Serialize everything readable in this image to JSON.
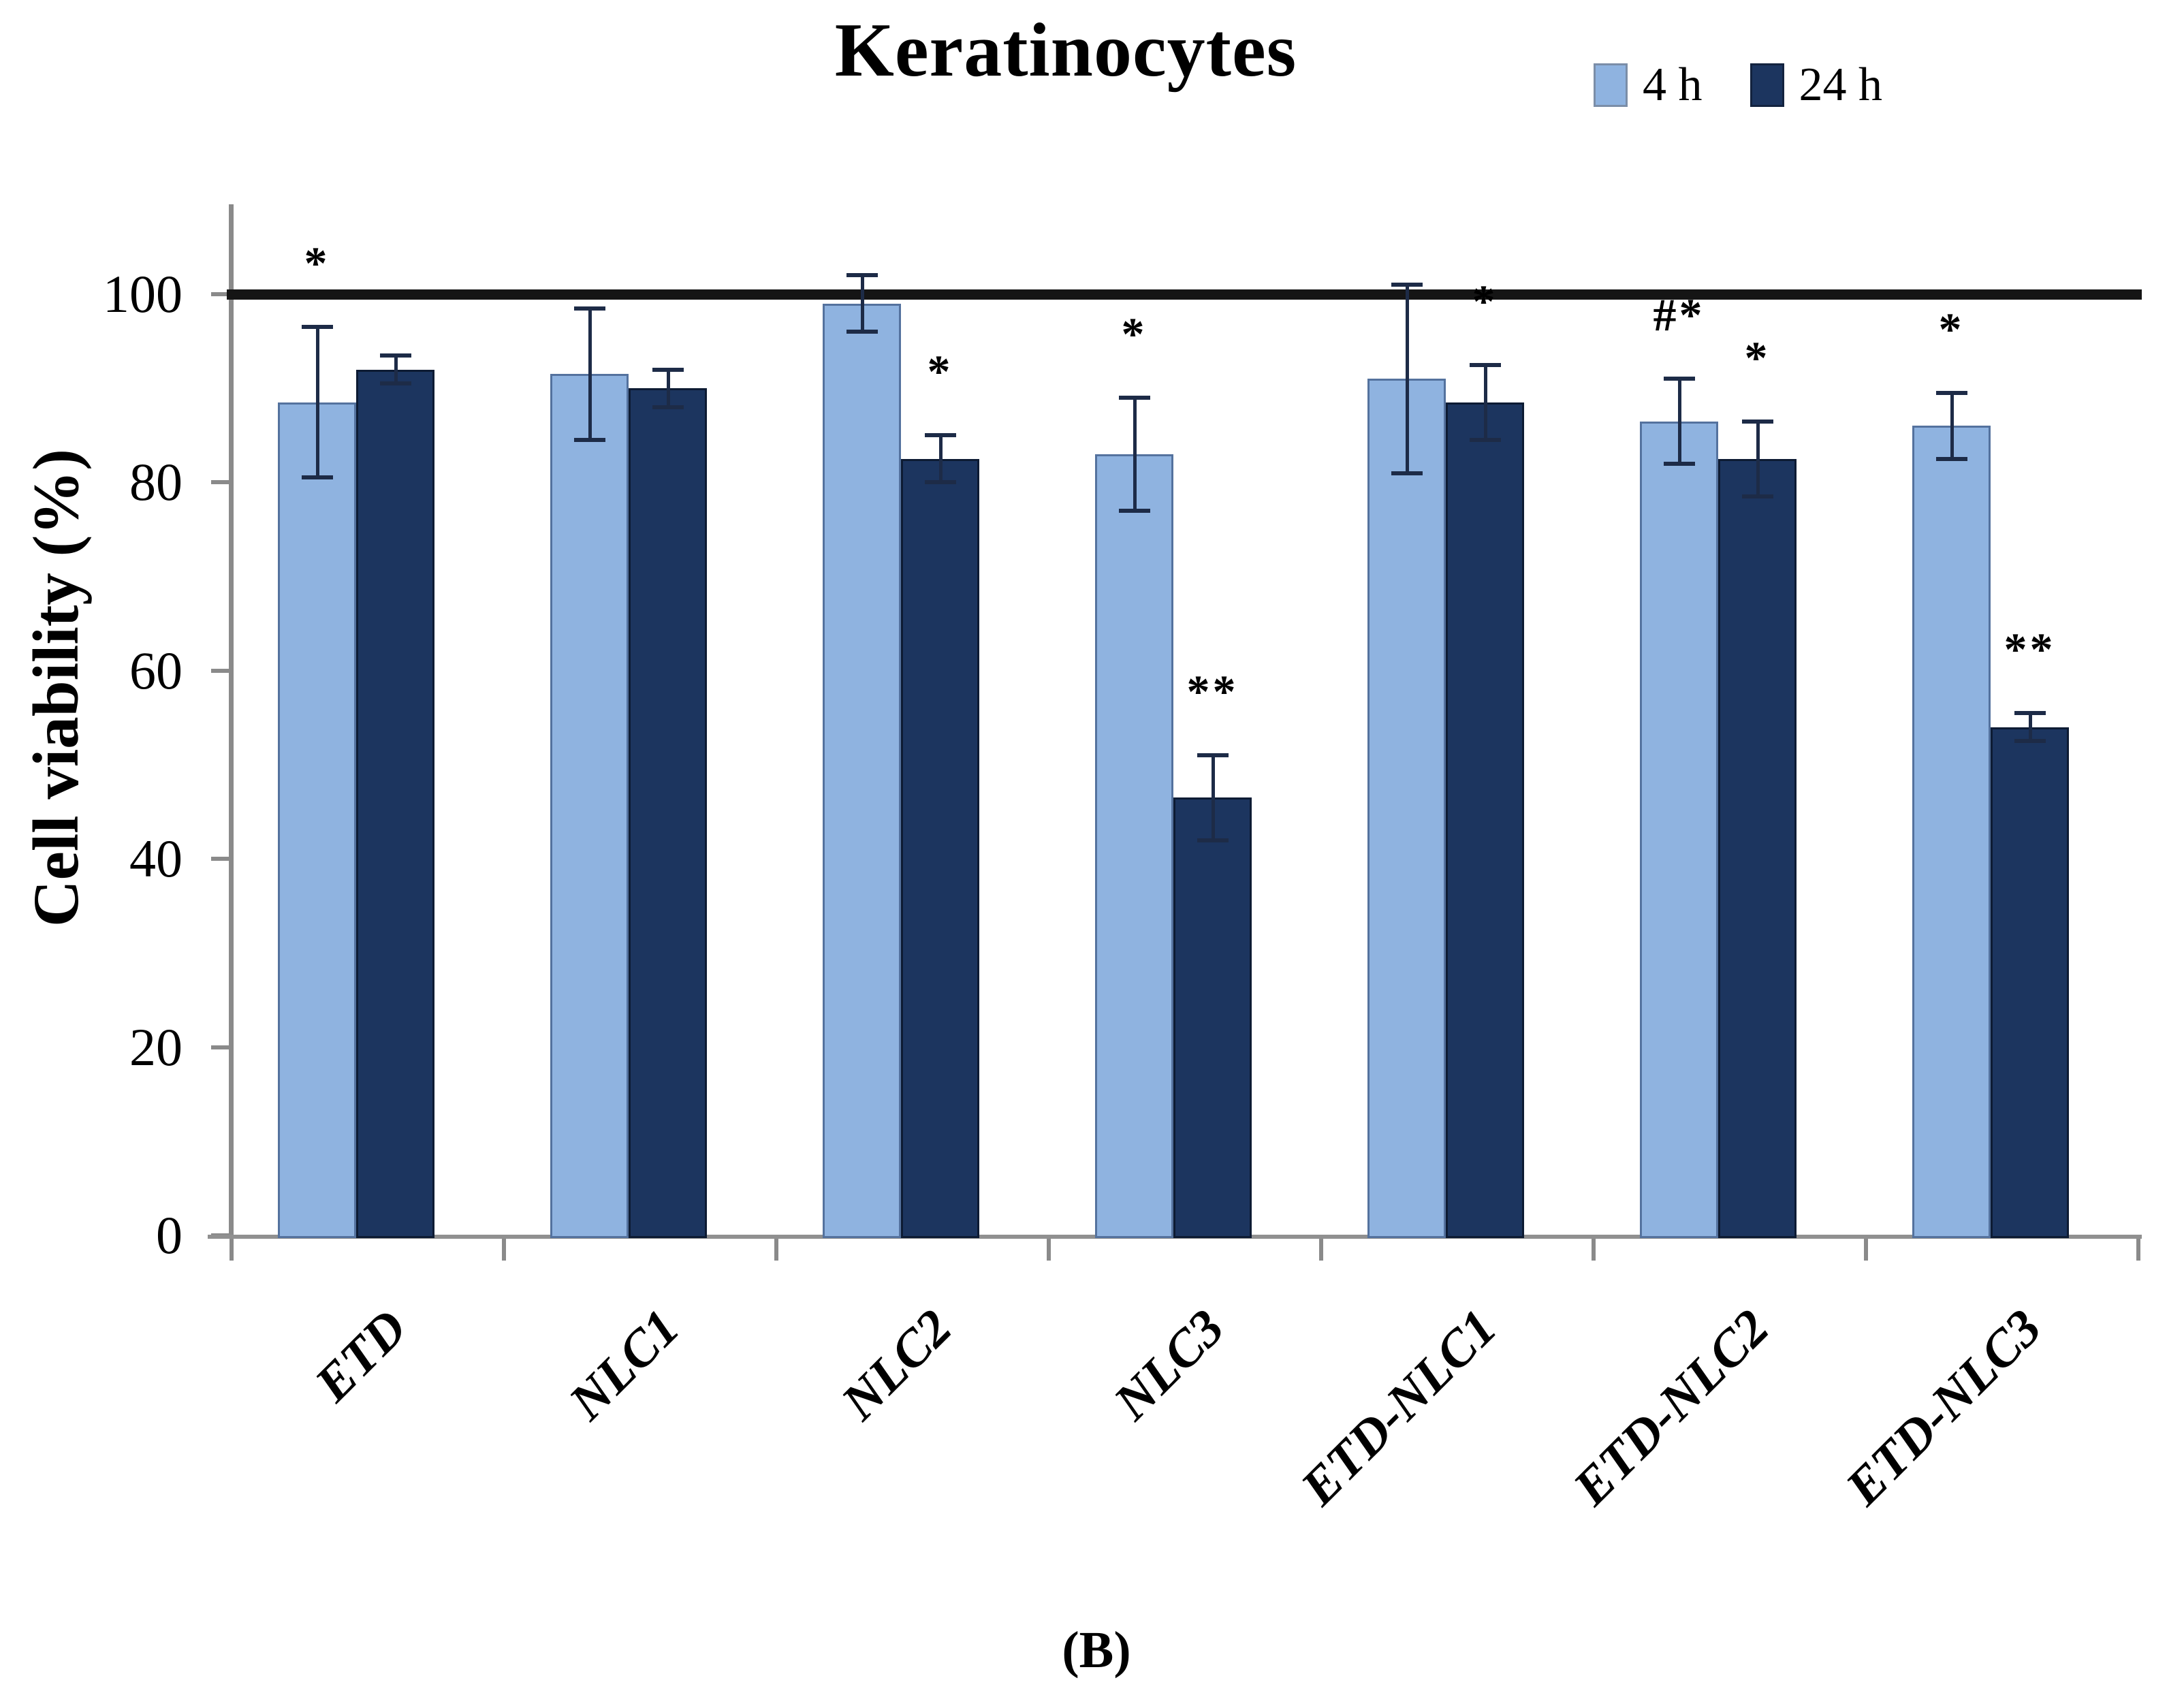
{
  "title": "Keratinocytes",
  "panel_label": "(B)",
  "legend": {
    "items": [
      {
        "label": "4 h",
        "color": "#8FB3E0"
      },
      {
        "label": "24 h",
        "color": "#1C355F"
      }
    ]
  },
  "chart_data": {
    "type": "bar",
    "title": "Keratinocytes",
    "xlabel": "",
    "ylabel": "Cell viability (%)",
    "ylim": [
      0,
      110
    ],
    "y_ticks": [
      0,
      20,
      40,
      60,
      80,
      100
    ],
    "reference_line_y": 100,
    "grid": false,
    "legend_position": "top-right",
    "categories": [
      "ETD",
      "NLC1",
      "NLC2",
      "NLC3",
      "ETD-NLC1",
      "ETD-NLC2",
      "ETD-NLC3"
    ],
    "series": [
      {
        "name": "4 h",
        "color": "#8FB3E0",
        "values": [
          88.5,
          91.5,
          99,
          83,
          91,
          86.5,
          86
        ],
        "errors": [
          8,
          7,
          3,
          6,
          10,
          4.5,
          3.5
        ],
        "annotations": [
          "*",
          "",
          "",
          "*",
          "",
          "#*",
          "*"
        ]
      },
      {
        "name": "24 h",
        "color": "#1C355F",
        "values": [
          92,
          90,
          82.5,
          46.5,
          88.5,
          82.5,
          54
        ],
        "errors": [
          1.5,
          2,
          2.5,
          4.5,
          4,
          4,
          1.5
        ],
        "annotations": [
          "",
          "",
          "*",
          "**",
          "*",
          "*",
          "**"
        ]
      }
    ]
  }
}
